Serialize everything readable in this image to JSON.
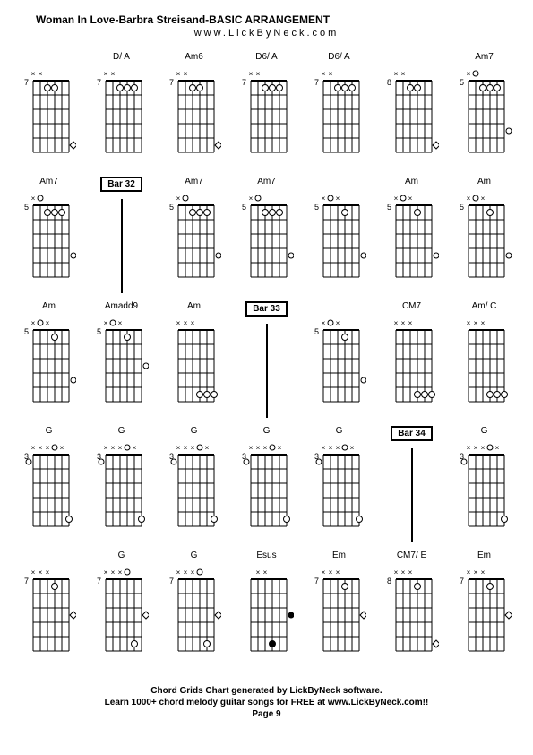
{
  "header": {
    "title": "Woman In Love-Barbra Streisand-BASIC ARRANGEMENT",
    "subtitle": "www.LickByNeck.com"
  },
  "footer": {
    "line1": "Chord Grids Chart generated by LickByNeck software.",
    "line2": "Learn 1000+ chord melody guitar songs for FREE at www.LickByNeck.com!!",
    "page": "Page 9"
  },
  "diagram_style": {
    "grid_color": "#000000",
    "string_count": 6,
    "fret_count": 5,
    "dot_fill": "#ffffff",
    "dot_stroke": "#000000",
    "x_mark": "×",
    "o_mark": "○"
  },
  "cells": [
    {
      "type": "chord",
      "name": "",
      "fret": "7",
      "markers": "xx    ",
      "dots": [
        {
          "f": 1,
          "s": 3
        },
        {
          "f": 1,
          "s": 4
        }
      ],
      "side": {
        "f": 5,
        "sym": "◇"
      }
    },
    {
      "type": "chord",
      "name": "D/ A",
      "fret": "7",
      "markers": "xx    ",
      "dots": [
        {
          "f": 1,
          "s": 3
        },
        {
          "f": 1,
          "s": 4
        },
        {
          "f": 1,
          "s": 5
        }
      ]
    },
    {
      "type": "chord",
      "name": "Am6",
      "fret": "7",
      "markers": "xx    ",
      "dots": [
        {
          "f": 1,
          "s": 3
        },
        {
          "f": 1,
          "s": 4
        }
      ],
      "side": {
        "f": 5,
        "sym": "◇"
      }
    },
    {
      "type": "chord",
      "name": "D6/ A",
      "fret": "7",
      "markers": "xx    ",
      "dots": [
        {
          "f": 1,
          "s": 3
        },
        {
          "f": 1,
          "s": 4
        },
        {
          "f": 1,
          "s": 5
        }
      ]
    },
    {
      "type": "chord",
      "name": "D6/ A",
      "fret": "7",
      "markers": "xx    ",
      "dots": [
        {
          "f": 1,
          "s": 3
        },
        {
          "f": 1,
          "s": 4
        },
        {
          "f": 1,
          "s": 5
        }
      ]
    },
    {
      "type": "chord",
      "name": "",
      "fret": "8",
      "markers": "xx    ",
      "dots": [
        {
          "f": 1,
          "s": 3
        },
        {
          "f": 1,
          "s": 4
        }
      ],
      "side": {
        "f": 5,
        "sym": "◇"
      }
    },
    {
      "type": "chord",
      "name": "Am7",
      "fret": "5",
      "markers": "xo    ",
      "dots": [
        {
          "f": 1,
          "s": 3
        },
        {
          "f": 1,
          "s": 4
        },
        {
          "f": 1,
          "s": 5
        }
      ],
      "side": {
        "f": 4,
        "sym": "○"
      }
    },
    {
      "type": "chord",
      "name": "Am7",
      "fret": "5",
      "markers": "xo    ",
      "dots": [
        {
          "f": 1,
          "s": 3
        },
        {
          "f": 1,
          "s": 4
        },
        {
          "f": 1,
          "s": 5
        }
      ],
      "side": {
        "f": 4,
        "sym": "○"
      }
    },
    {
      "type": "bar",
      "name": "Bar 32"
    },
    {
      "type": "chord",
      "name": "Am7",
      "fret": "5",
      "markers": "xo    ",
      "dots": [
        {
          "f": 1,
          "s": 3
        },
        {
          "f": 1,
          "s": 4
        },
        {
          "f": 1,
          "s": 5
        }
      ],
      "side": {
        "f": 4,
        "sym": "○"
      }
    },
    {
      "type": "chord",
      "name": "Am7",
      "fret": "5",
      "markers": "xo    ",
      "dots": [
        {
          "f": 1,
          "s": 3
        },
        {
          "f": 1,
          "s": 4
        },
        {
          "f": 1,
          "s": 5
        }
      ],
      "side": {
        "f": 4,
        "sym": "○"
      }
    },
    {
      "type": "chord",
      "name": "",
      "fret": "5",
      "markers": "xox   ",
      "dots": [
        {
          "f": 1,
          "s": 4
        }
      ],
      "side": {
        "f": 4,
        "sym": "○"
      }
    },
    {
      "type": "chord",
      "name": "Am",
      "fret": "5",
      "markers": "xox   ",
      "dots": [
        {
          "f": 1,
          "s": 4
        }
      ],
      "side": {
        "f": 4,
        "sym": "○"
      }
    },
    {
      "type": "chord",
      "name": "Am",
      "fret": "5",
      "markers": "xox   ",
      "dots": [
        {
          "f": 1,
          "s": 4
        }
      ],
      "side": {
        "f": 4,
        "sym": "○"
      }
    },
    {
      "type": "chord",
      "name": "Am",
      "fret": "5",
      "markers": "xox   ",
      "dots": [
        {
          "f": 1,
          "s": 4
        }
      ],
      "side": {
        "f": 4,
        "sym": "○"
      }
    },
    {
      "type": "chord",
      "name": "Amadd9",
      "fret": "5",
      "markers": "xox   ",
      "dots": [
        {
          "f": 1,
          "s": 4
        }
      ],
      "side": {
        "f": 3,
        "sym": "○"
      }
    },
    {
      "type": "chord",
      "name": "Am",
      "fret": "",
      "markers": "xxx   ",
      "dots": [
        {
          "f": 5,
          "s": 4
        },
        {
          "f": 5,
          "s": 5
        },
        {
          "f": 5,
          "s": 6
        }
      ]
    },
    {
      "type": "bar",
      "name": "Bar 33"
    },
    {
      "type": "chord",
      "name": "",
      "fret": "5",
      "markers": "xox   ",
      "dots": [
        {
          "f": 1,
          "s": 4
        }
      ],
      "side": {
        "f": 4,
        "sym": "○"
      }
    },
    {
      "type": "chord",
      "name": "CM7",
      "fret": "",
      "markers": "xxx   ",
      "dots": [
        {
          "f": 5,
          "s": 4
        },
        {
          "f": 5,
          "s": 5
        },
        {
          "f": 5,
          "s": 6
        }
      ]
    },
    {
      "type": "chord",
      "name": "Am/ C",
      "fret": "",
      "markers": "xxx   ",
      "dots": [
        {
          "f": 5,
          "s": 4
        },
        {
          "f": 5,
          "s": 5
        },
        {
          "f": 5,
          "s": 6
        }
      ]
    },
    {
      "type": "chord",
      "name": "G",
      "fret": "3",
      "markers": "xxxox ",
      "dots": [
        {
          "f": 5,
          "s": 6
        }
      ],
      "left": {
        "f": 1,
        "sym": "○"
      }
    },
    {
      "type": "chord",
      "name": "G",
      "fret": "3",
      "markers": "xxxox ",
      "dots": [
        {
          "f": 5,
          "s": 6
        }
      ],
      "left": {
        "f": 1,
        "sym": "○"
      }
    },
    {
      "type": "chord",
      "name": "G",
      "fret": "3",
      "markers": "xxxox ",
      "dots": [
        {
          "f": 5,
          "s": 6
        }
      ],
      "left": {
        "f": 1,
        "sym": "○"
      }
    },
    {
      "type": "chord",
      "name": "G",
      "fret": "3",
      "markers": "xxxox ",
      "dots": [
        {
          "f": 5,
          "s": 6
        }
      ],
      "left": {
        "f": 1,
        "sym": "○"
      }
    },
    {
      "type": "chord",
      "name": "G",
      "fret": "3",
      "markers": "xxxox ",
      "dots": [
        {
          "f": 5,
          "s": 6
        }
      ],
      "left": {
        "f": 1,
        "sym": "○"
      }
    },
    {
      "type": "bar",
      "name": "Bar 34"
    },
    {
      "type": "chord",
      "name": "G",
      "fret": "3",
      "markers": "xxxox ",
      "dots": [
        {
          "f": 5,
          "s": 6
        }
      ],
      "left": {
        "f": 1,
        "sym": "○"
      }
    },
    {
      "type": "chord",
      "name": "",
      "fret": "7",
      "markers": "xxx   ",
      "dots": [
        {
          "f": 1,
          "s": 4
        }
      ],
      "side": {
        "f": 3,
        "sym": "◇"
      }
    },
    {
      "type": "chord",
      "name": "G",
      "fret": "7",
      "markers": "xxxo  ",
      "dots": [
        {
          "f": 5,
          "s": 5
        }
      ],
      "side": {
        "f": 3,
        "sym": "◇"
      }
    },
    {
      "type": "chord",
      "name": "G",
      "fret": "7",
      "markers": "xxxo  ",
      "dots": [
        {
          "f": 5,
          "s": 5
        }
      ],
      "side": {
        "f": 3,
        "sym": "◇"
      }
    },
    {
      "type": "chord",
      "name": "Esus",
      "fret": "",
      "markers": " xx   ",
      "dots": [
        {
          "f": 5,
          "s": 4,
          "fill": "#000"
        }
      ],
      "side": {
        "f": 3,
        "sym": "◉"
      }
    },
    {
      "type": "chord",
      "name": "Em",
      "fret": "7",
      "markers": "xxx   ",
      "dots": [
        {
          "f": 1,
          "s": 4
        }
      ],
      "side": {
        "f": 3,
        "sym": "◇"
      }
    },
    {
      "type": "chord",
      "name": "CM7/ E",
      "fret": "8",
      "markers": "xxx   ",
      "dots": [
        {
          "f": 1,
          "s": 4
        }
      ],
      "side": {
        "f": 5,
        "sym": "◇"
      }
    },
    {
      "type": "chord",
      "name": "Em",
      "fret": "7",
      "markers": "xxx   ",
      "dots": [
        {
          "f": 1,
          "s": 4
        }
      ],
      "side": {
        "f": 3,
        "sym": "◇"
      }
    }
  ]
}
